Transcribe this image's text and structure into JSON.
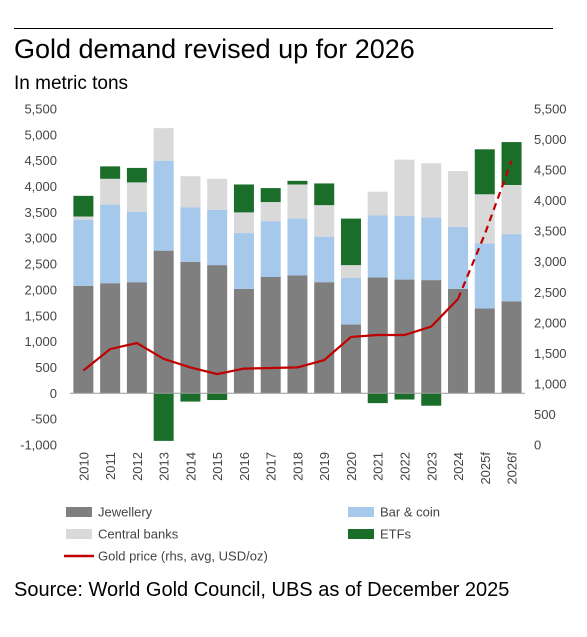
{
  "page": {
    "title": "Gold demand revised up for 2026",
    "subtitle": "In metric tons",
    "source": "Source: World Gold Council, UBS as of December 2025"
  },
  "chart_data": {
    "type": "bar",
    "stacked": true,
    "title": "Gold demand revised up for 2026",
    "subtitle": "In metric tons",
    "categories": [
      "2010",
      "2011",
      "2012",
      "2013",
      "2014",
      "2015",
      "2016",
      "2017",
      "2018",
      "2019",
      "2020",
      "2021",
      "2022",
      "2023",
      "2024",
      "2025f",
      "2026f"
    ],
    "y_left": {
      "ylim": [
        -1000,
        5500
      ],
      "ticks": [
        "5,500",
        "5,000",
        "4,500",
        "4,000",
        "3,500",
        "3,000",
        "2,500",
        "2,000",
        "1,500",
        "1,000",
        "500",
        "0",
        "-500",
        "-1,000"
      ]
    },
    "y_right": {
      "ylim": [
        0,
        5500
      ],
      "ticks": [
        "5,500",
        "5,000",
        "4,500",
        "4,000",
        "3,500",
        "3,000",
        "2,500",
        "2,000",
        "1,500",
        "1,000",
        "500",
        "0"
      ]
    },
    "series": [
      {
        "name": "Jewellery",
        "color": "#7f7f7f",
        "axis": "left",
        "values": [
          2080,
          2130,
          2150,
          2760,
          2540,
          2480,
          2020,
          2250,
          2280,
          2150,
          1330,
          2240,
          2200,
          2190,
          2020,
          1640,
          1780
        ]
      },
      {
        "name": "Bar & coin",
        "color": "#a6c8ea",
        "axis": "left",
        "values": [
          1280,
          1520,
          1360,
          1740,
          1060,
          1070,
          1080,
          1080,
          1100,
          880,
          900,
          1200,
          1230,
          1210,
          1200,
          1260,
          1300
        ]
      },
      {
        "name": "Central banks",
        "color": "#d9d9d9",
        "axis": "left",
        "values": [
          60,
          500,
          570,
          630,
          600,
          600,
          400,
          370,
          660,
          610,
          250,
          460,
          1090,
          1050,
          1080,
          950,
          950
        ]
      },
      {
        "name": "ETFs",
        "color": "#1a6e2a",
        "axis": "left",
        "values": [
          400,
          240,
          280,
          -920,
          -160,
          -130,
          540,
          270,
          70,
          420,
          900,
          -190,
          -120,
          -240,
          0,
          870,
          830
        ]
      },
      {
        "name": "Gold price (rhs, avg, USD/oz)",
        "color": "#c00000",
        "axis": "right",
        "type": "line",
        "values": [
          1220,
          1570,
          1670,
          1410,
          1270,
          1160,
          1250,
          1260,
          1270,
          1390,
          1770,
          1800,
          1800,
          1940,
          2390,
          3450,
          4650
        ],
        "forecast_from": "2024"
      }
    ],
    "legend": [
      "Jewellery",
      "Bar & coin",
      "Central banks",
      "ETFs",
      "Gold price (rhs, avg, USD/oz)"
    ],
    "legend_position": "bottom",
    "grid": false
  }
}
